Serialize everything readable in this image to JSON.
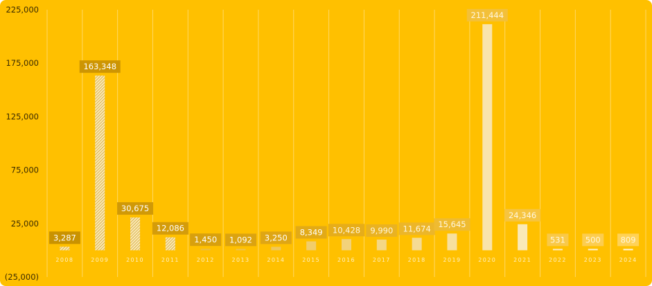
{
  "chart_data": {
    "type": "bar",
    "title": "",
    "xlabel": "",
    "ylabel": "",
    "categories": [
      "2008",
      "2009",
      "2010",
      "2011",
      "2012",
      "2013",
      "2014",
      "2015",
      "2016",
      "2017",
      "2018",
      "2019",
      "2020",
      "2021",
      "2022",
      "2023",
      "2024"
    ],
    "values": [
      3287,
      163348,
      30675,
      12086,
      1450,
      1092,
      3250,
      8349,
      10428,
      9990,
      11674,
      15645,
      211444,
      24346,
      531,
      500,
      809
    ],
    "value_labels": [
      "3,287",
      "163,348",
      "30,675",
      "12,086",
      "1,450",
      "1,092",
      "3,250",
      "8,349",
      "10,428",
      "9,990",
      "11,674",
      "15,645",
      "211,444",
      "24,346",
      "531",
      "500",
      "809"
    ],
    "ylim": [
      -25000,
      225000
    ],
    "yticks": [
      -25000,
      25000,
      75000,
      125000,
      175000,
      225000
    ],
    "ytick_labels": [
      "(25,000)",
      "25,000",
      "75,000",
      "125,000",
      "175,000",
      "225,000"
    ],
    "grid": "vertical",
    "legend": "none",
    "colors": {
      "background": "#ffc000",
      "grid": "#ffd966",
      "axis_text": "#3a2a00",
      "category_text": "#fff1c2",
      "bar_gradient": [
        "#e6a700",
        "#f2d27a",
        "#fff6dc"
      ],
      "label_box_gradient": [
        "#c99200",
        "#e6ad1a",
        "#ffd257"
      ],
      "label_text_dark": "#ffffff",
      "label_text_light": "#fff7e0"
    }
  }
}
